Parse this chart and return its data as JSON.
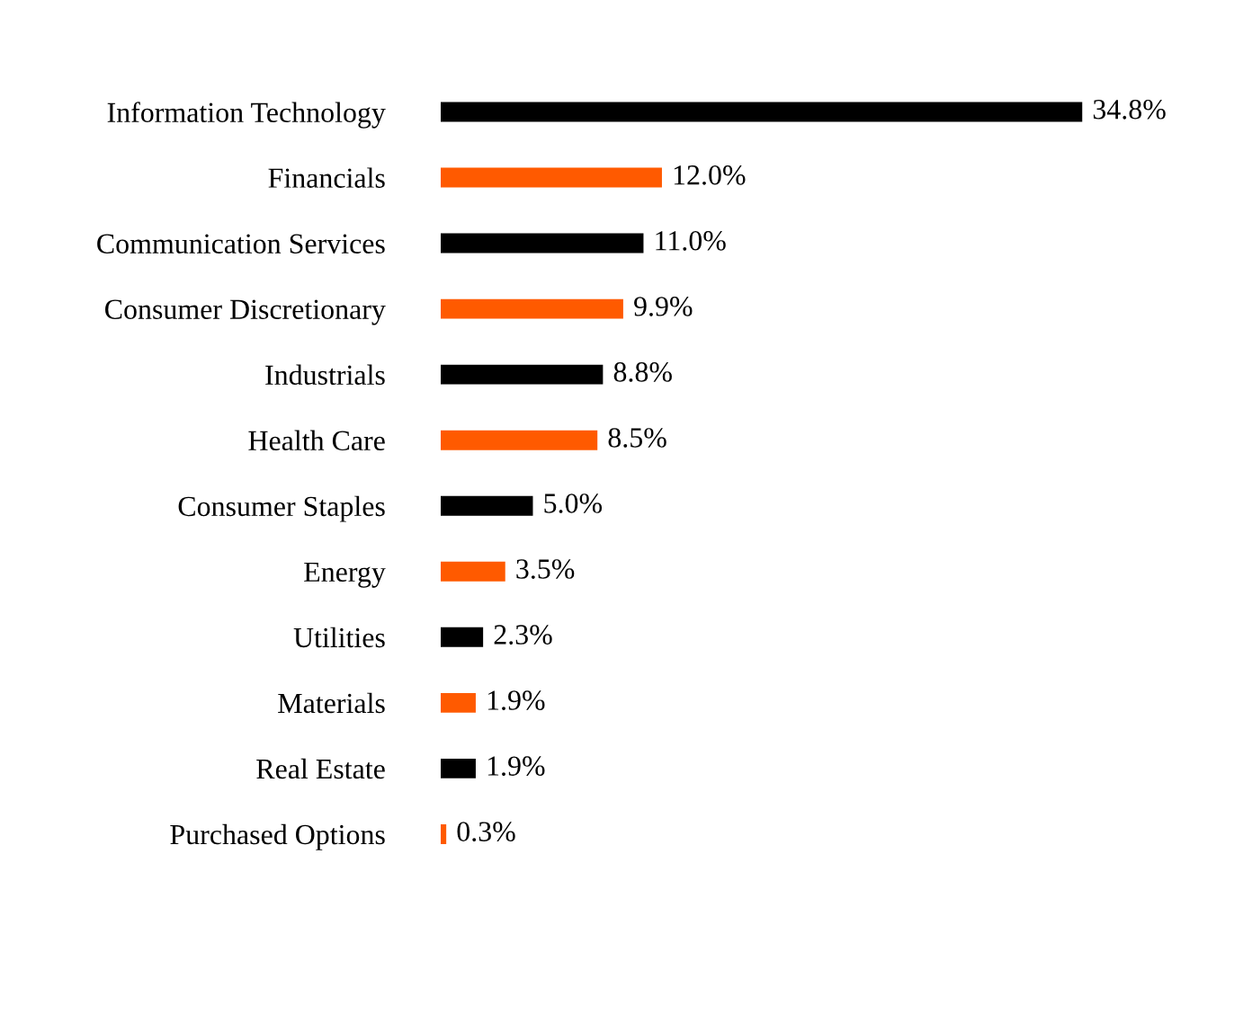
{
  "chart_data": {
    "type": "bar",
    "orientation": "horizontal",
    "categories": [
      "Information Technology",
      "Financials",
      "Communication Services",
      "Consumer Discretionary",
      "Industrials",
      "Health Care",
      "Consumer Staples",
      "Energy",
      "Utilities",
      "Materials",
      "Real Estate",
      "Purchased Options"
    ],
    "values": [
      34.8,
      12.0,
      11.0,
      9.9,
      8.8,
      8.5,
      5.0,
      3.5,
      2.3,
      1.9,
      1.9,
      0.3
    ],
    "colors": [
      "#000000",
      "#ff5a00",
      "#000000",
      "#ff5a00",
      "#000000",
      "#ff5a00",
      "#000000",
      "#ff5a00",
      "#000000",
      "#ff5a00",
      "#000000",
      "#ff5a00"
    ],
    "value_labels": [
      "34.8%",
      "12.0%",
      "11.0%",
      "9.9%",
      "8.8%",
      "8.5%",
      "5.0%",
      "3.5%",
      "2.3%",
      "1.9%",
      "1.9%",
      "0.3%"
    ],
    "grid": false,
    "legend": false
  }
}
